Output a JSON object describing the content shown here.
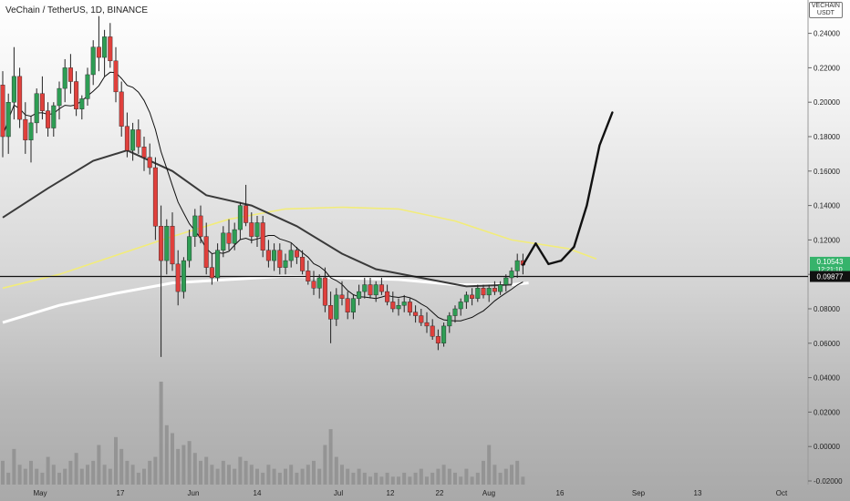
{
  "header": {
    "title": "VeChain / TetherUS, 1D, BINANCE",
    "axis_tag_top": "VECHAIN",
    "axis_tag_bottom": "USDT"
  },
  "colors": {
    "up": "#2e9d54",
    "down": "#e0403c",
    "volume": "#8f8f8f",
    "ma_short": "#111111",
    "ma_mid": "#3a3a3a",
    "ma_yellow": "#f2ec7a",
    "ma_white": "#ffffff",
    "price_badge": "#36b36b",
    "level_badge": "#111111"
  },
  "chart_data": {
    "type": "candlestick",
    "pair": "VET/USDT",
    "interval": "1D",
    "exchange": "BINANCE",
    "y_axis": {
      "ticks": [
        "0.24000",
        "0.22000",
        "0.20000",
        "0.18000",
        "0.16000",
        "0.14000",
        "0.12000",
        "0.10000",
        "0.08000",
        "0.06000",
        "0.04000",
        "0.02000",
        "0.00000",
        "-0.02000"
      ],
      "range": [
        -0.02,
        0.25
      ]
    },
    "x_axis": {
      "ticks": [
        "May",
        "17",
        "Jun",
        "14",
        "Jul",
        "12",
        "22",
        "Aug",
        "16",
        "Sep",
        "13",
        "Oct"
      ]
    },
    "current_price": "0.10543",
    "countdown": "12:21:10",
    "horizontal_level": "0.09877",
    "candles": [
      [
        0.21,
        0.218,
        0.168,
        0.18
      ],
      [
        0.18,
        0.205,
        0.17,
        0.2
      ],
      [
        0.2,
        0.232,
        0.19,
        0.215
      ],
      [
        0.215,
        0.22,
        0.185,
        0.19
      ],
      [
        0.19,
        0.2,
        0.17,
        0.178
      ],
      [
        0.178,
        0.192,
        0.165,
        0.188
      ],
      [
        0.188,
        0.208,
        0.182,
        0.205
      ],
      [
        0.205,
        0.215,
        0.19,
        0.195
      ],
      [
        0.195,
        0.2,
        0.18,
        0.185
      ],
      [
        0.185,
        0.2,
        0.18,
        0.198
      ],
      [
        0.198,
        0.212,
        0.19,
        0.208
      ],
      [
        0.208,
        0.225,
        0.2,
        0.22
      ],
      [
        0.22,
        0.228,
        0.205,
        0.212
      ],
      [
        0.212,
        0.218,
        0.192,
        0.196
      ],
      [
        0.196,
        0.204,
        0.19,
        0.202
      ],
      [
        0.202,
        0.22,
        0.198,
        0.216
      ],
      [
        0.216,
        0.236,
        0.21,
        0.232
      ],
      [
        0.232,
        0.25,
        0.218,
        0.226
      ],
      [
        0.226,
        0.242,
        0.215,
        0.238
      ],
      [
        0.238,
        0.246,
        0.22,
        0.224
      ],
      [
        0.224,
        0.232,
        0.2,
        0.206
      ],
      [
        0.206,
        0.212,
        0.18,
        0.186
      ],
      [
        0.186,
        0.194,
        0.168,
        0.172
      ],
      [
        0.172,
        0.188,
        0.166,
        0.184
      ],
      [
        0.184,
        0.19,
        0.17,
        0.174
      ],
      [
        0.174,
        0.18,
        0.16,
        0.168
      ],
      [
        0.168,
        0.176,
        0.158,
        0.162
      ],
      [
        0.162,
        0.168,
        0.12,
        0.128
      ],
      [
        0.128,
        0.14,
        0.052,
        0.108
      ],
      [
        0.108,
        0.132,
        0.1,
        0.128
      ],
      [
        0.128,
        0.136,
        0.102,
        0.106
      ],
      [
        0.106,
        0.114,
        0.082,
        0.09
      ],
      [
        0.09,
        0.11,
        0.086,
        0.108
      ],
      [
        0.108,
        0.126,
        0.104,
        0.122
      ],
      [
        0.122,
        0.138,
        0.116,
        0.134
      ],
      [
        0.134,
        0.14,
        0.118,
        0.122
      ],
      [
        0.122,
        0.13,
        0.1,
        0.104
      ],
      [
        0.104,
        0.112,
        0.094,
        0.098
      ],
      [
        0.098,
        0.118,
        0.096,
        0.114
      ],
      [
        0.114,
        0.128,
        0.11,
        0.124
      ],
      [
        0.124,
        0.132,
        0.114,
        0.118
      ],
      [
        0.118,
        0.13,
        0.114,
        0.126
      ],
      [
        0.126,
        0.142,
        0.12,
        0.14
      ],
      [
        0.14,
        0.152,
        0.128,
        0.13
      ],
      [
        0.13,
        0.136,
        0.118,
        0.122
      ],
      [
        0.122,
        0.134,
        0.116,
        0.13
      ],
      [
        0.13,
        0.134,
        0.11,
        0.114
      ],
      [
        0.114,
        0.12,
        0.104,
        0.108
      ],
      [
        0.108,
        0.118,
        0.102,
        0.114
      ],
      [
        0.114,
        0.118,
        0.1,
        0.104
      ],
      [
        0.104,
        0.112,
        0.1,
        0.108
      ],
      [
        0.108,
        0.118,
        0.104,
        0.114
      ],
      [
        0.114,
        0.116,
        0.106,
        0.11
      ],
      [
        0.11,
        0.114,
        0.1,
        0.102
      ],
      [
        0.102,
        0.108,
        0.094,
        0.096
      ],
      [
        0.096,
        0.102,
        0.088,
        0.092
      ],
      [
        0.092,
        0.1,
        0.086,
        0.098
      ],
      [
        0.098,
        0.104,
        0.078,
        0.082
      ],
      [
        0.082,
        0.09,
        0.06,
        0.074
      ],
      [
        0.074,
        0.092,
        0.07,
        0.088
      ],
      [
        0.088,
        0.096,
        0.082,
        0.086
      ],
      [
        0.086,
        0.09,
        0.074,
        0.078
      ],
      [
        0.078,
        0.088,
        0.074,
        0.086
      ],
      [
        0.086,
        0.094,
        0.082,
        0.09
      ],
      [
        0.09,
        0.098,
        0.086,
        0.094
      ],
      [
        0.094,
        0.098,
        0.086,
        0.088
      ],
      [
        0.088,
        0.096,
        0.084,
        0.094
      ],
      [
        0.094,
        0.098,
        0.088,
        0.09
      ],
      [
        0.09,
        0.094,
        0.082,
        0.084
      ],
      [
        0.084,
        0.09,
        0.078,
        0.08
      ],
      [
        0.08,
        0.086,
        0.076,
        0.082
      ],
      [
        0.082,
        0.088,
        0.078,
        0.084
      ],
      [
        0.084,
        0.086,
        0.076,
        0.078
      ],
      [
        0.078,
        0.082,
        0.072,
        0.076
      ],
      [
        0.076,
        0.08,
        0.07,
        0.072
      ],
      [
        0.072,
        0.078,
        0.066,
        0.07
      ],
      [
        0.07,
        0.074,
        0.062,
        0.064
      ],
      [
        0.064,
        0.068,
        0.056,
        0.06
      ],
      [
        0.06,
        0.072,
        0.058,
        0.07
      ],
      [
        0.07,
        0.078,
        0.066,
        0.076
      ],
      [
        0.076,
        0.082,
        0.072,
        0.08
      ],
      [
        0.08,
        0.086,
        0.076,
        0.084
      ],
      [
        0.084,
        0.09,
        0.08,
        0.088
      ],
      [
        0.088,
        0.092,
        0.082,
        0.086
      ],
      [
        0.086,
        0.094,
        0.084,
        0.092
      ],
      [
        0.092,
        0.094,
        0.086,
        0.088
      ],
      [
        0.088,
        0.094,
        0.084,
        0.092
      ],
      [
        0.092,
        0.096,
        0.088,
        0.09
      ],
      [
        0.09,
        0.096,
        0.088,
        0.094
      ],
      [
        0.094,
        0.1,
        0.09,
        0.098
      ],
      [
        0.098,
        0.104,
        0.094,
        0.102
      ],
      [
        0.102,
        0.112,
        0.098,
        0.108
      ],
      [
        0.108,
        0.112,
        0.1,
        0.10543
      ]
    ],
    "volume": [
      0.012,
      0.006,
      0.018,
      0.01,
      0.008,
      0.012,
      0.008,
      0.006,
      0.014,
      0.01,
      0.006,
      0.008,
      0.012,
      0.016,
      0.008,
      0.01,
      0.012,
      0.02,
      0.01,
      0.008,
      0.024,
      0.018,
      0.012,
      0.01,
      0.006,
      0.008,
      0.012,
      0.014,
      0.052,
      0.03,
      0.026,
      0.018,
      0.02,
      0.022,
      0.016,
      0.012,
      0.014,
      0.01,
      0.008,
      0.012,
      0.01,
      0.008,
      0.014,
      0.012,
      0.01,
      0.008,
      0.006,
      0.01,
      0.008,
      0.006,
      0.008,
      0.01,
      0.006,
      0.008,
      0.01,
      0.012,
      0.008,
      0.02,
      0.028,
      0.014,
      0.01,
      0.008,
      0.006,
      0.008,
      0.006,
      0.004,
      0.006,
      0.004,
      0.006,
      0.004,
      0.004,
      0.006,
      0.004,
      0.006,
      0.008,
      0.004,
      0.006,
      0.008,
      0.01,
      0.008,
      0.006,
      0.004,
      0.008,
      0.004,
      0.006,
      0.012,
      0.02,
      0.01,
      0.006,
      0.008,
      0.01,
      0.012,
      0.004
    ],
    "drawing_projection": [
      [
        0.10543
      ],
      [
        0.118
      ],
      [
        0.106
      ],
      [
        0.108
      ],
      [
        0.116
      ],
      [
        0.14
      ],
      [
        0.175
      ],
      [
        0.194
      ]
    ]
  }
}
